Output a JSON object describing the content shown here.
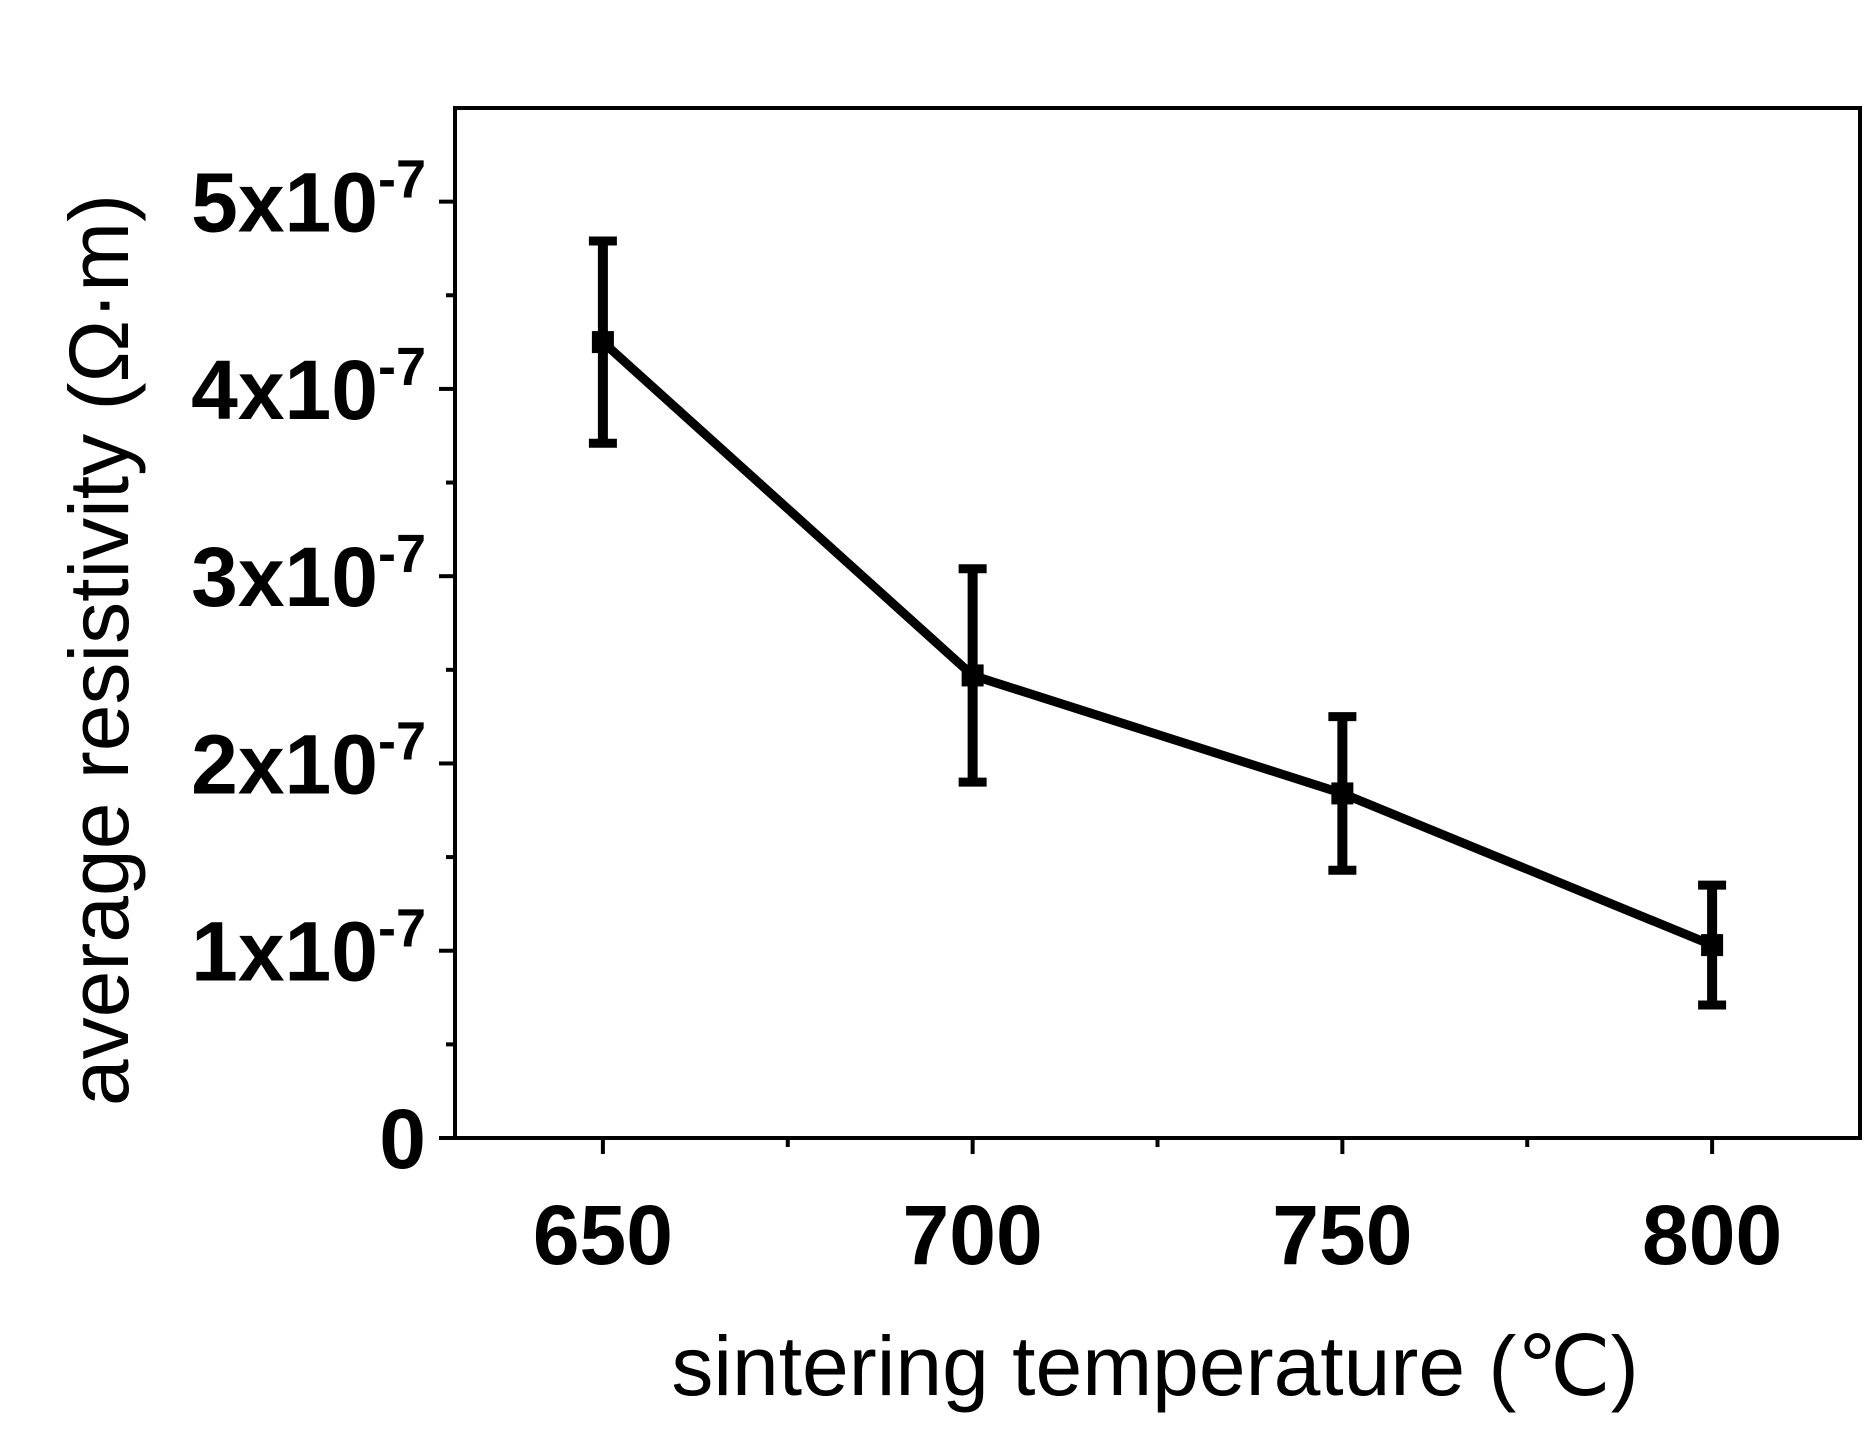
{
  "chart_data": {
    "type": "line",
    "title": "",
    "xlabel": "sintering temperature (℃)",
    "ylabel": "average resistivity (Ω·m)",
    "x": [
      650,
      700,
      750,
      800
    ],
    "series": [
      {
        "name": "average resistivity",
        "values": [
          4.25e-07,
          2.47e-07,
          1.84e-07,
          1.03e-07
        ],
        "error": [
          5.4e-08,
          5.7e-08,
          4.1e-08,
          3.2e-08
        ]
      }
    ],
    "xlim": [
      630,
      820
    ],
    "ylim": [
      0,
      5.5e-07
    ],
    "x_ticks": [
      {
        "value": 650,
        "label": "650"
      },
      {
        "value": 700,
        "label": "700"
      },
      {
        "value": 750,
        "label": "750"
      },
      {
        "value": 800,
        "label": "800"
      }
    ],
    "x_minor_ticks": [
      675,
      725,
      775
    ],
    "y_ticks": [
      {
        "value": 0,
        "mantissa": "0",
        "exponent": ""
      },
      {
        "value": 1e-07,
        "mantissa": "1x10",
        "exponent": "-7"
      },
      {
        "value": 2e-07,
        "mantissa": "2x10",
        "exponent": "-7"
      },
      {
        "value": 3e-07,
        "mantissa": "3x10",
        "exponent": "-7"
      },
      {
        "value": 4e-07,
        "mantissa": "4x10",
        "exponent": "-7"
      },
      {
        "value": 5e-07,
        "mantissa": "5x10",
        "exponent": "-7"
      }
    ],
    "y_minor_ticks": [
      5e-08,
      1.5e-07,
      2.5e-07,
      3.5e-07,
      4.5e-07
    ],
    "grid": false,
    "legend": "none",
    "line_color": "#000000"
  }
}
